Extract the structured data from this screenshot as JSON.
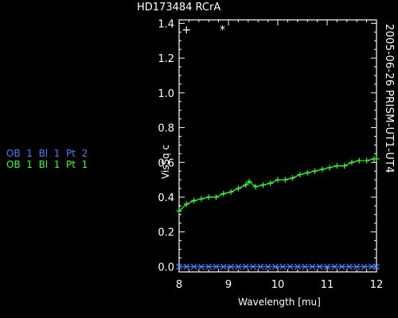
{
  "header": {
    "title": "HD173484 RCrA"
  },
  "side_label": "2005-06-26 PRISM-UT1-UT4",
  "legend": [
    {
      "label": "OB  1  Bl  1  Pt  2",
      "color": "#4a7dff"
    },
    {
      "label": "OB  1  Bl  1  Pt  1",
      "color": "#33ff33"
    }
  ],
  "chart_data": {
    "type": "line",
    "title": "HD173484 RCrA",
    "xlabel": "Wavelength [mu]",
    "ylabel": "VisSq c",
    "xlim": [
      8,
      12
    ],
    "ylim": [
      -0.03,
      1.42
    ],
    "xticks": [
      8,
      9,
      10,
      11,
      12
    ],
    "xtick_labels": [
      "8",
      "9",
      "10",
      "11",
      "12"
    ],
    "yticks": [
      0.0,
      0.2,
      0.4,
      0.6,
      0.8,
      1.0,
      1.2,
      1.4
    ],
    "ytick_labels": [
      "0.0",
      "0.2",
      "0.4",
      "0.6",
      "0.8",
      "1.0",
      "1.2",
      "1.4"
    ],
    "series": [
      {
        "name": "OB 1 Bl 1 Pt 1",
        "color": "#33ff33",
        "marker": "+",
        "x": [
          8.0,
          8.15,
          8.3,
          8.45,
          8.6,
          8.75,
          8.9,
          9.05,
          9.2,
          9.35,
          9.42,
          9.55,
          9.7,
          9.85,
          10.0,
          10.15,
          10.3,
          10.45,
          10.6,
          10.75,
          10.9,
          11.05,
          11.2,
          11.35,
          11.5,
          11.65,
          11.8,
          11.95,
          12.0
        ],
        "y": [
          0.32,
          0.36,
          0.38,
          0.39,
          0.4,
          0.4,
          0.42,
          0.43,
          0.45,
          0.47,
          0.49,
          0.46,
          0.47,
          0.48,
          0.5,
          0.5,
          0.51,
          0.53,
          0.54,
          0.55,
          0.56,
          0.57,
          0.58,
          0.58,
          0.6,
          0.61,
          0.61,
          0.62,
          0.62
        ]
      },
      {
        "name": "OB 1 Bl 1 Pt 2",
        "color": "#4a7dff",
        "marker": "x",
        "x": [
          8.0,
          8.15,
          8.3,
          8.45,
          8.6,
          8.75,
          8.9,
          9.05,
          9.2,
          9.35,
          9.5,
          9.65,
          9.8,
          9.95,
          10.1,
          10.25,
          10.4,
          10.55,
          10.7,
          10.85,
          11.0,
          11.15,
          11.3,
          11.45,
          11.6,
          11.75,
          11.9,
          12.0
        ],
        "y": [
          0.0,
          0.0,
          0.0,
          0.0,
          0.0,
          0.0,
          0.0,
          0.0,
          0.0,
          0.0,
          0.0,
          0.0,
          0.0,
          0.0,
          0.0,
          0.0,
          0.0,
          0.0,
          0.0,
          0.0,
          0.0,
          0.0,
          0.0,
          0.0,
          0.0,
          0.0,
          0.0,
          0.0
        ]
      }
    ],
    "annotations": [
      {
        "text": "+",
        "x": 8.15,
        "y": 1.37,
        "color": "#ffffff"
      },
      {
        "text": "*",
        "x": 8.88,
        "y": 1.37,
        "color": "#ffffff"
      }
    ]
  }
}
